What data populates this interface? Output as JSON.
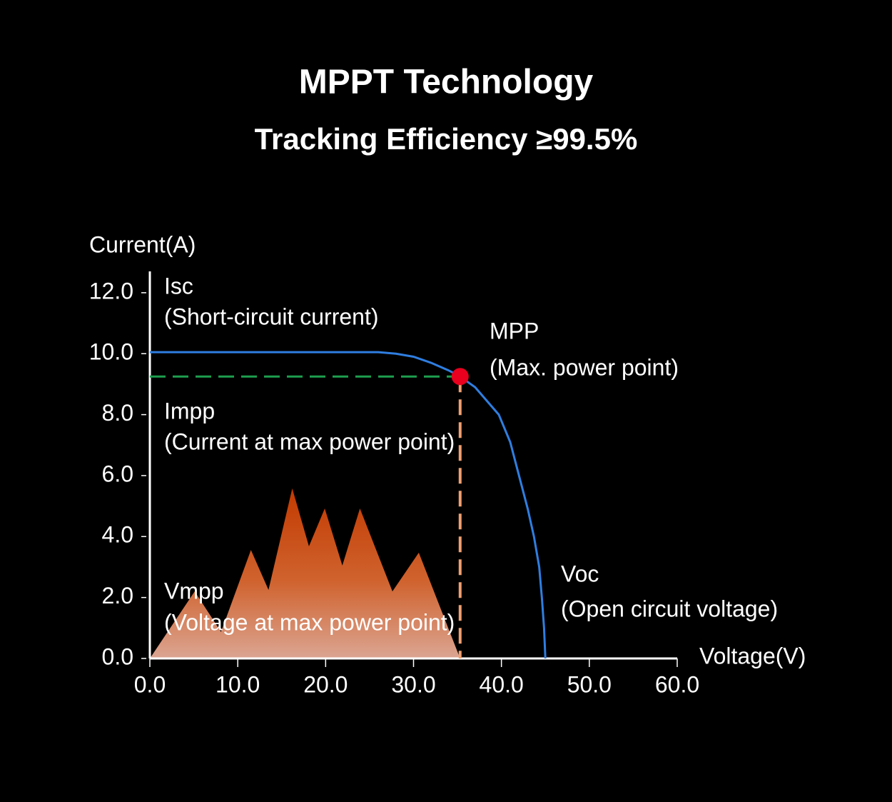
{
  "chart_data": {
    "type": "line",
    "title": "MPPT Technology",
    "subtitle": "Tracking Efficiency ≥99.5%",
    "y_label": "Current(A)",
    "x_label": "Voltage(V)",
    "xlim": [
      0,
      60
    ],
    "ylim": [
      0,
      12.7
    ],
    "xticks": [
      {
        "value": 0,
        "label": "0.0"
      },
      {
        "value": 10,
        "label": "10.0"
      },
      {
        "value": 20,
        "label": "20.0"
      },
      {
        "value": 30,
        "label": "30.0"
      },
      {
        "value": 40,
        "label": "40.0"
      },
      {
        "value": 50,
        "label": "50.0"
      },
      {
        "value": 60,
        "label": "60.0"
      }
    ],
    "yticks": [
      {
        "value": 0,
        "label": "0.0"
      },
      {
        "value": 2,
        "label": "2.0"
      },
      {
        "value": 4,
        "label": "4.0"
      },
      {
        "value": 6,
        "label": "6.0"
      },
      {
        "value": 8,
        "label": "8.0"
      },
      {
        "value": 10,
        "label": "10.0"
      },
      {
        "value": 12,
        "label": "12.0"
      }
    ],
    "series": [
      {
        "color": "#2f7ee0",
        "x": [
          0,
          26,
          28,
          30,
          32,
          34,
          35.3,
          37,
          38.5,
          39.7,
          41,
          42,
          43,
          43.7,
          44.3,
          44.6,
          44.85,
          45
        ],
        "values": [
          10.05,
          10.05,
          10.0,
          9.9,
          9.7,
          9.45,
          9.25,
          8.9,
          8.4,
          8.0,
          7.1,
          6.0,
          4.9,
          4.0,
          3.0,
          2.0,
          1.0,
          0
        ]
      },
      {
        "color": "#c83c08",
        "x": [
          0,
          5.1,
          8.1,
          11.5,
          13.5,
          16.2,
          18.1,
          19.9,
          21.9,
          23.9,
          27.6,
          30.6,
          35.3
        ],
        "values": [
          0,
          2.2,
          0.87,
          3.56,
          2.25,
          5.58,
          3.68,
          4.92,
          3.05,
          4.92,
          2.2,
          3.47,
          0
        ]
      }
    ],
    "mpp": {
      "x": 35.3,
      "y": 9.25,
      "color": "#e8001e"
    },
    "annotations": [
      "Isc",
      "(Short-circuit current)",
      "MPP",
      "(Max. power point)",
      "Impp",
      "(Current at max power point)",
      "Vmpp",
      "(Voltage at max power point)",
      "Voc",
      "(Open circuit voltage)"
    ]
  }
}
